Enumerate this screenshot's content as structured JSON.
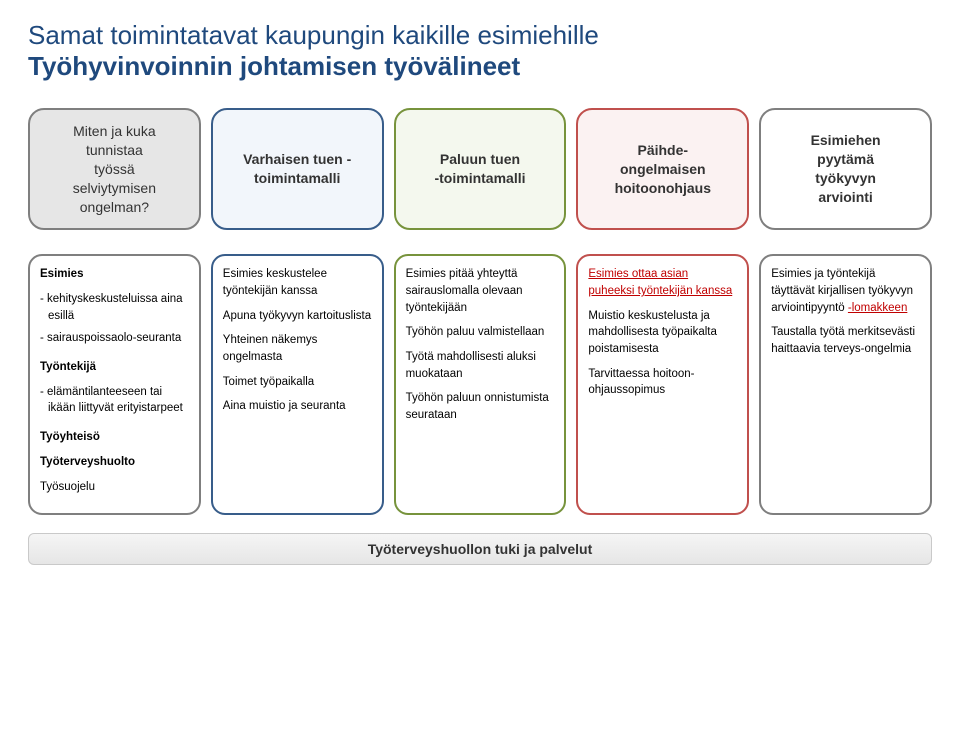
{
  "title": {
    "line1": "Samat toimintatavat kaupungin kaikille esimiehille",
    "line2": "Työhyvinvoinnin johtamisen työvälineet",
    "color": "#1f497d",
    "fontsize": 26
  },
  "headers": [
    {
      "html": "Miten ja kuka<br>tunnistaa<br>työssä<br>selviytymisen<br>ongelman?",
      "border": "#7f7f7f",
      "bg": "#e6e6e6",
      "text": "#333333"
    },
    {
      "html": "Varhaisen tuen -toimintamalli",
      "border": "#385d8a",
      "bg": "#f2f6fb",
      "text": "#333333"
    },
    {
      "html": "Paluun tuen<br>-toimintamalli",
      "border": "#77933c",
      "bg": "#f4f8ee",
      "text": "#333333"
    },
    {
      "html": "Päihde-<br>ongelmaisen<br>hoitoonohjaus",
      "border": "#c0504d",
      "bg": "#fbf2f2",
      "text": "#333333"
    },
    {
      "html": "Esimiehen<br>pyytämä<br>työkyvyn<br>arviointi",
      "border": "#7f7f7f",
      "bg": "#ffffff",
      "text": "#333333"
    }
  ],
  "details": [
    {
      "border": "#7f7f7f",
      "blocks": [
        {
          "type": "bold",
          "text": "Esimies"
        },
        {
          "type": "list",
          "items": [
            "kehityskeskusteluissa aina esillä",
            "sairauspoissaolo-seuranta"
          ]
        },
        {
          "type": "bold",
          "text": "Työntekijä"
        },
        {
          "type": "list",
          "items": [
            "elämäntilanteeseen tai ikään liittyvät erityistarpeet"
          ]
        },
        {
          "type": "bold",
          "text": "Työyhteisö"
        },
        {
          "type": "bold",
          "text": "Työterveyshuolto"
        },
        {
          "type": "p",
          "text": "Työsuojelu"
        }
      ]
    },
    {
      "border": "#385d8a",
      "blocks": [
        {
          "type": "p",
          "text": "Esimies keskustelee työntekijän kanssa"
        },
        {
          "type": "p",
          "text": "Apuna työkyvyn kartoituslista"
        },
        {
          "type": "p",
          "text": "Yhteinen näkemys ongelmasta"
        },
        {
          "type": "p",
          "text": "Toimet työpaikalla"
        },
        {
          "type": "p",
          "text": "Aina muistio ja seuranta"
        }
      ]
    },
    {
      "border": "#77933c",
      "blocks": [
        {
          "type": "p",
          "text": "Esimies pitää yhteyttä sairauslomalla olevaan työntekijään"
        },
        {
          "type": "p",
          "text": "Työhön paluu valmistellaan"
        },
        {
          "type": "p",
          "text": "Työtä mahdollisesti aluksi muokataan"
        },
        {
          "type": "p",
          "text": "Työhön paluun onnistumista seurataan"
        }
      ]
    },
    {
      "border": "#c0504d",
      "blocks": [
        {
          "type": "redlink",
          "text": "Esimies ottaa asian puheeksi työntekijän kanssa"
        },
        {
          "type": "p",
          "text": "Muistio keskustelusta ja mahdollisesta työpaikalta poistamisesta"
        },
        {
          "type": "p",
          "text": "Tarvittaessa hoitoon-ohjaussopimus"
        }
      ]
    },
    {
      "border": "#7f7f7f",
      "blocks": [
        {
          "type": "mixed",
          "pre": "Esimies ja työntekijä täyttävät kirjallisen työkyvyn arviointipyyntö ",
          "linktext": "-lomakkeen"
        },
        {
          "type": "p",
          "text": "Taustalla työtä merkitsevästi haittaavia terveys-ongelmia"
        }
      ]
    }
  ],
  "footer": {
    "text": "Työterveyshuollon tuki ja palvelut",
    "border": "#c9c9c9"
  },
  "style": {
    "header_fontsize": 14,
    "detail_fontsize": 11.5,
    "redlink_color": "#c00000"
  }
}
